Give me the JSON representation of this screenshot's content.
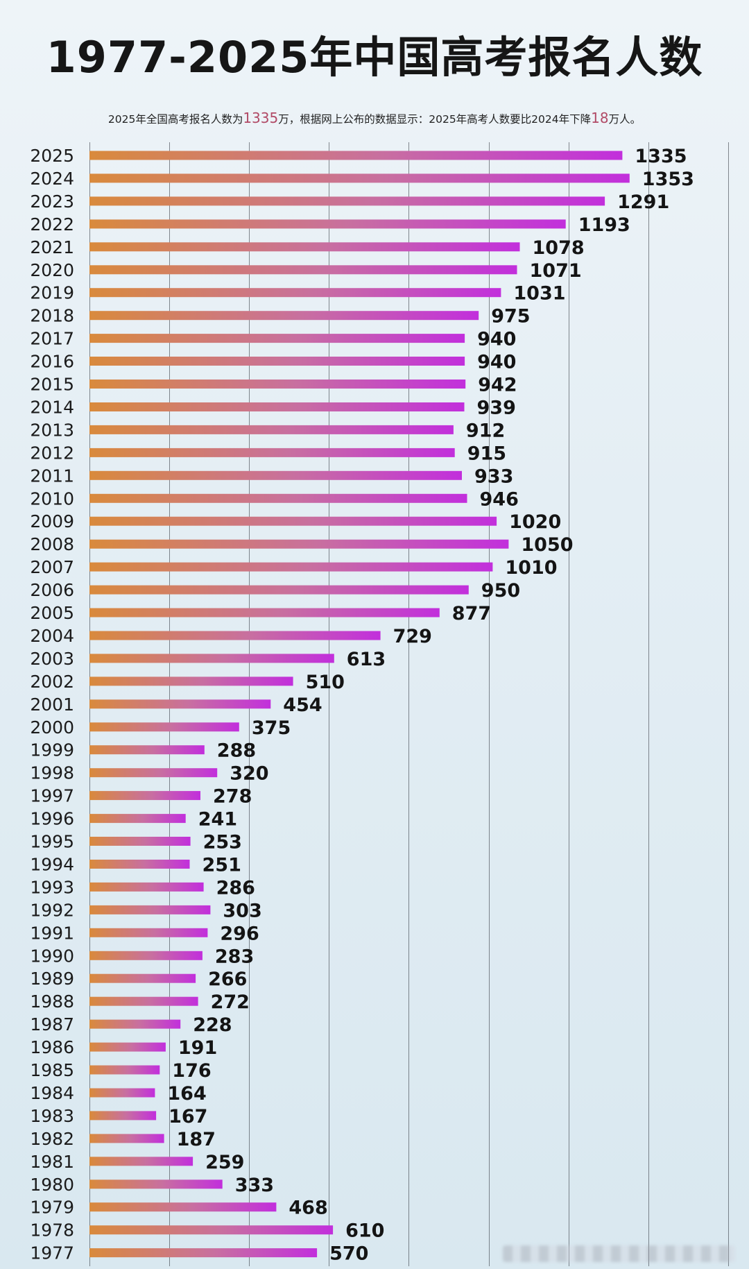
{
  "title": "1977-2025年中国高考报名人数",
  "subtitle": {
    "part1": "2025年全国高考报名人数为",
    "value1": "1335",
    "part2": "万，根据网上公布的数据显示：2025年高考人数要比2024年下降",
    "value2": "18",
    "part3": "万人。"
  },
  "colors": {
    "bar_start": "#d98a3c",
    "bar_mid": "#c86fa0",
    "bar_end": "#c22fdc"
  },
  "chart_data": {
    "type": "bar",
    "orientation": "horizontal",
    "categories": [
      "2025",
      "2024",
      "2023",
      "2022",
      "2021",
      "2020",
      "2019",
      "2018",
      "2017",
      "2016",
      "2015",
      "2014",
      "2013",
      "2012",
      "2011",
      "2010",
      "2009",
      "2008",
      "2007",
      "2006",
      "2005",
      "2004",
      "2003",
      "2002",
      "2001",
      "2000",
      "1999",
      "1998",
      "1997",
      "1996",
      "1995",
      "1994",
      "1993",
      "1992",
      "1991",
      "1990",
      "1989",
      "1988",
      "1987",
      "1986",
      "1985",
      "1984",
      "1983",
      "1982",
      "1981",
      "1980",
      "1979",
      "1978",
      "1977"
    ],
    "values": [
      1335,
      1353,
      1291,
      1193,
      1078,
      1071,
      1031,
      975,
      940,
      940,
      942,
      939,
      912,
      915,
      933,
      946,
      1020,
      1050,
      1010,
      950,
      877,
      729,
      613,
      510,
      454,
      375,
      288,
      320,
      278,
      241,
      253,
      251,
      286,
      303,
      296,
      283,
      266,
      272,
      228,
      191,
      176,
      164,
      167,
      187,
      259,
      333,
      468,
      610,
      570
    ],
    "xlim": [
      0,
      1600
    ],
    "grid": true
  }
}
